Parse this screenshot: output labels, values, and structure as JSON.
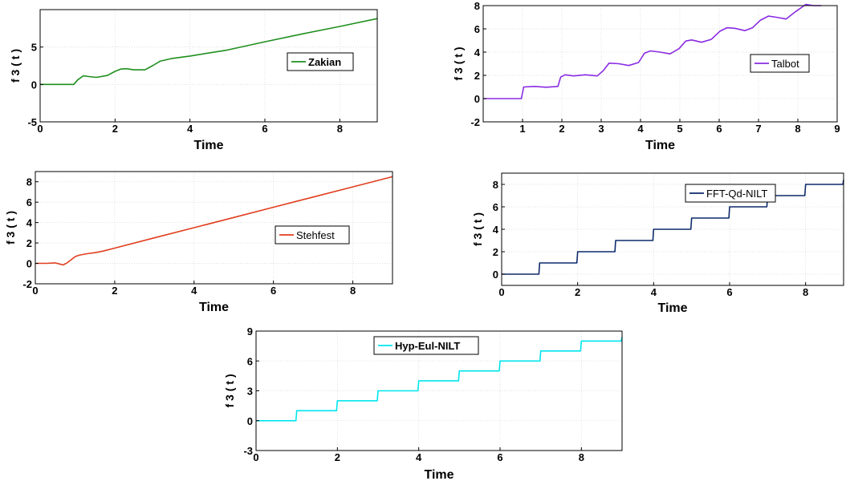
{
  "chart_data": [
    {
      "type": "line",
      "method": "Zakian",
      "xlabel": "Time",
      "ylabel": "f 3 ( t )",
      "xlim": [
        0,
        9
      ],
      "ylim": [
        -5,
        10
      ],
      "xticks": [
        0,
        2,
        4,
        6,
        8
      ],
      "yticks": [
        -5,
        0,
        5
      ],
      "grid": true,
      "legend_position": "right",
      "legend_bold": true,
      "series": [
        {
          "name": "Zakian",
          "color": "#1f8f1f",
          "x": [
            0,
            0.5,
            0.9,
            1.0,
            1.15,
            1.3,
            1.5,
            1.8,
            2.0,
            2.15,
            2.3,
            2.5,
            2.8,
            3.0,
            3.2,
            3.5,
            4.0,
            5.0,
            6.0,
            7.0,
            8.0,
            9.0
          ],
          "y": [
            0,
            0,
            0,
            0.6,
            1.15,
            1.05,
            0.95,
            1.2,
            1.75,
            2.05,
            2.1,
            1.95,
            1.95,
            2.5,
            3.1,
            3.45,
            3.8,
            4.6,
            5.7,
            6.75,
            7.75,
            8.8
          ]
        }
      ]
    },
    {
      "type": "line",
      "method": "Talbot",
      "xlabel": "Time",
      "ylabel": "f 3 ( t )",
      "xlim": [
        0,
        9
      ],
      "ylim": [
        -2,
        8
      ],
      "xticks": [
        1,
        2,
        3,
        4,
        5,
        6,
        7,
        8,
        9
      ],
      "yticks": [
        -2,
        0,
        2,
        4,
        6,
        8
      ],
      "grid": true,
      "legend_position": "right",
      "legend_bold": false,
      "series": [
        {
          "name": "Talbot",
          "color": "#8a2be2",
          "x": [
            0,
            0.5,
            0.97,
            1.03,
            1.3,
            1.6,
            1.9,
            1.97,
            2.08,
            2.3,
            2.6,
            2.9,
            3.05,
            3.2,
            3.45,
            3.7,
            3.95,
            4.1,
            4.25,
            4.5,
            4.75,
            4.98,
            5.15,
            5.3,
            5.55,
            5.8,
            6.02,
            6.2,
            6.4,
            6.65,
            6.85,
            7.05,
            7.25,
            7.45,
            7.7,
            7.95,
            8.2,
            8.4,
            8.6
          ],
          "y": [
            0,
            0,
            0,
            1.0,
            1.05,
            0.98,
            1.05,
            1.85,
            2.05,
            1.95,
            2.05,
            1.95,
            2.4,
            3.05,
            3.0,
            2.85,
            3.1,
            3.9,
            4.1,
            4.0,
            3.85,
            4.3,
            4.95,
            5.05,
            4.85,
            5.1,
            5.8,
            6.1,
            6.05,
            5.85,
            6.1,
            6.75,
            7.1,
            7.0,
            6.85,
            7.5,
            8.1,
            8.0,
            8.0
          ]
        }
      ]
    },
    {
      "type": "line",
      "method": "Stehfest",
      "xlabel": "Time",
      "ylabel": "f 3 ( t )",
      "xlim": [
        0,
        9
      ],
      "ylim": [
        -2,
        9
      ],
      "xticks": [
        0,
        2,
        4,
        6,
        8
      ],
      "yticks": [
        -2,
        0,
        2,
        4,
        6,
        8
      ],
      "grid": true,
      "legend_position": "right",
      "legend_bold": false,
      "series": [
        {
          "name": "Stehfest",
          "color": "#e03e1e",
          "x": [
            0,
            0.3,
            0.5,
            0.6,
            0.7,
            0.8,
            0.9,
            1.0,
            1.1,
            1.3,
            1.5,
            1.7,
            2.0,
            3.0,
            4.0,
            5.0,
            6.0,
            7.0,
            8.0,
            9.0
          ],
          "y": [
            0,
            0,
            0.05,
            -0.05,
            -0.15,
            0.05,
            0.35,
            0.65,
            0.8,
            0.95,
            1.05,
            1.2,
            1.5,
            2.5,
            3.5,
            4.5,
            5.5,
            6.5,
            7.5,
            8.5
          ]
        }
      ]
    },
    {
      "type": "line",
      "method": "FFT-Qd-NILT",
      "xlabel": "Time",
      "ylabel": "f 3 ( t )",
      "xlim": [
        0,
        9
      ],
      "ylim": [
        -1,
        9
      ],
      "xticks": [
        0,
        2,
        4,
        6,
        8
      ],
      "yticks": [
        0,
        2,
        4,
        6,
        8
      ],
      "grid": true,
      "legend_position": "top-right",
      "legend_bold": false,
      "series": [
        {
          "name": "FFT-Qd-NILT",
          "color": "#0d2a6b",
          "x": [
            0,
            0.98,
            1.0,
            1.98,
            2.0,
            2.98,
            3.0,
            3.98,
            4.0,
            4.98,
            5.0,
            5.98,
            6.0,
            6.98,
            7.0,
            7.98,
            8.0,
            8.98,
            9.0
          ],
          "y": [
            0,
            0,
            1,
            1,
            2,
            2,
            3,
            3,
            4,
            4,
            5,
            5,
            6,
            6,
            7,
            7,
            8,
            8,
            8.4
          ]
        }
      ]
    },
    {
      "type": "line",
      "method": "Hyp-Eul-NILT",
      "xlabel": "Time",
      "ylabel": "f 3 ( t )",
      "xlim": [
        0,
        9
      ],
      "ylim": [
        -3,
        9
      ],
      "xticks": [
        0,
        2,
        4,
        6,
        8
      ],
      "yticks": [
        -3,
        0,
        3,
        6,
        9
      ],
      "grid": true,
      "legend_position": "top-center",
      "legend_bold": true,
      "series": [
        {
          "name": "Hyp-Eul-NILT",
          "color": "#00e5ee",
          "x": [
            0,
            0.98,
            1.0,
            1.98,
            2.0,
            2.98,
            3.0,
            3.98,
            4.0,
            4.98,
            5.0,
            5.98,
            6.0,
            6.98,
            7.0,
            7.98,
            8.0,
            8.98,
            9.0
          ],
          "y": [
            0,
            0,
            1,
            1,
            2,
            2,
            3,
            3,
            4,
            4,
            5,
            5,
            6,
            6,
            7,
            7,
            8,
            8,
            8.4
          ]
        }
      ]
    }
  ]
}
